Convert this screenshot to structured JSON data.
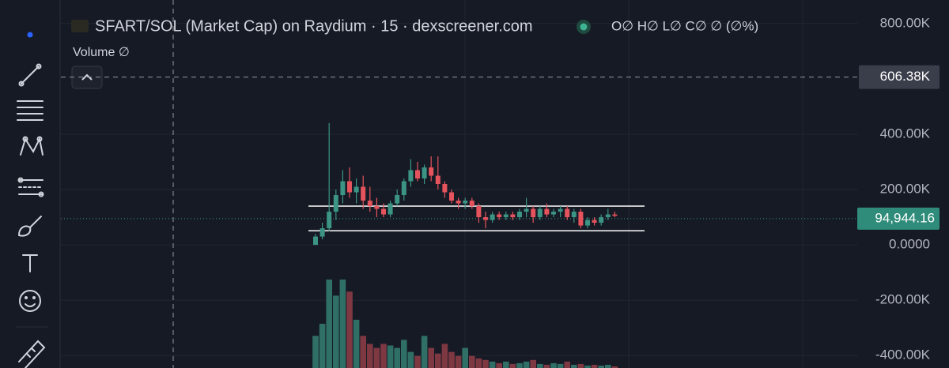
{
  "chart_data": {
    "type": "candlestick",
    "title": "SFART/SOL (Market Cap) on Raydium · 15 · dexscreener.com",
    "ohlc_legend": "O∅ H∅ L∅ C∅ ∅ (∅%)",
    "volume_label": "Volume ∅",
    "categories": [
      null,
      null,
      null,
      null,
      null,
      null,
      null,
      null,
      null,
      null,
      null,
      null,
      null,
      null,
      null,
      null,
      null,
      null,
      null,
      null,
      null,
      null,
      null,
      null,
      null,
      null,
      null,
      null,
      null,
      null,
      null,
      null,
      null,
      null,
      null,
      null,
      null,
      null,
      null,
      null,
      null,
      null,
      null,
      null,
      null
    ],
    "open": [
      0,
      30000,
      60000,
      120000,
      180000,
      230000,
      190000,
      210000,
      160000,
      140000,
      130000,
      110000,
      150000,
      180000,
      230000,
      270000,
      240000,
      280000,
      250000,
      220000,
      190000,
      160000,
      150000,
      160000,
      140000,
      100000,
      90000,
      110000,
      100000,
      110000,
      100000,
      120000,
      130000,
      100000,
      130000,
      110000,
      120000,
      130000,
      100000,
      120000,
      70000,
      90000,
      80000,
      100000,
      110000
    ],
    "high": [
      40000,
      80000,
      440000,
      200000,
      270000,
      280000,
      240000,
      250000,
      210000,
      170000,
      150000,
      160000,
      200000,
      240000,
      310000,
      300000,
      290000,
      320000,
      320000,
      230000,
      200000,
      170000,
      170000,
      170000,
      150000,
      120000,
      120000,
      120000,
      120000,
      120000,
      130000,
      170000,
      140000,
      140000,
      150000,
      130000,
      140000,
      140000,
      130000,
      130000,
      100000,
      100000,
      110000,
      130000,
      120000
    ],
    "low": [
      0,
      20000,
      50000,
      90000,
      150000,
      170000,
      150000,
      130000,
      120000,
      100000,
      100000,
      100000,
      140000,
      160000,
      210000,
      230000,
      220000,
      230000,
      200000,
      170000,
      150000,
      130000,
      130000,
      130000,
      80000,
      60000,
      80000,
      90000,
      90000,
      90000,
      90000,
      100000,
      80000,
      90000,
      100000,
      100000,
      100000,
      90000,
      80000,
      60000,
      60000,
      70000,
      70000,
      90000,
      100000
    ],
    "close": [
      30000,
      60000,
      120000,
      180000,
      230000,
      190000,
      210000,
      160000,
      140000,
      130000,
      110000,
      150000,
      180000,
      230000,
      270000,
      240000,
      280000,
      250000,
      220000,
      190000,
      160000,
      150000,
      160000,
      140000,
      100000,
      90000,
      110000,
      100000,
      110000,
      100000,
      120000,
      130000,
      100000,
      130000,
      110000,
      120000,
      130000,
      100000,
      120000,
      70000,
      90000,
      80000,
      100000,
      110000,
      105000
    ],
    "volume": [
      40,
      55,
      110,
      90,
      110,
      95,
      60,
      40,
      30,
      25,
      30,
      28,
      25,
      35,
      20,
      15,
      40,
      25,
      18,
      30,
      20,
      15,
      25,
      15,
      12,
      10,
      8,
      6,
      8,
      5,
      6,
      8,
      10,
      5,
      4,
      6,
      5,
      8,
      4,
      5,
      3,
      4,
      3,
      4,
      2
    ],
    "up_color": "#3b9484",
    "down_color": "#e5535d",
    "volume_up_color": "#2f6f66",
    "volume_down_color": "#7d3842",
    "ylim": [
      -445000,
      885000
    ],
    "yticks": [
      {
        "value": -400000,
        "label": "-400.00K"
      },
      {
        "value": -200000,
        "label": "-200.00K"
      },
      {
        "value": 0,
        "label": "0.0000"
      },
      {
        "value": 200000,
        "label": "200.00K"
      },
      {
        "value": 400000,
        "label": "400.00K"
      },
      {
        "value": 800000,
        "label": "800.00K"
      }
    ],
    "levels": [
      140000,
      51000
    ],
    "crosshair_price": {
      "value": 606380,
      "label": "606.38K"
    },
    "last_price": {
      "value": 94944.16,
      "label": "94,944.16"
    },
    "grid": true
  }
}
